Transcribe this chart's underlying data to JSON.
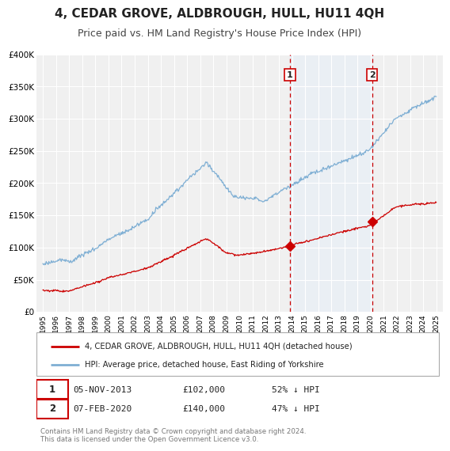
{
  "title": "4, CEDAR GROVE, ALDBROUGH, HULL, HU11 4QH",
  "subtitle": "Price paid vs. HM Land Registry's House Price Index (HPI)",
  "title_fontsize": 11,
  "subtitle_fontsize": 9,
  "background_color": "#ffffff",
  "plot_bg_color": "#f0f0f0",
  "grid_color": "#ffffff",
  "red_line_color": "#cc0000",
  "blue_line_color": "#7fafd4",
  "blue_fill_color": "#ddeeff",
  "sale1_x": 2013.84,
  "sale1_y": 102000,
  "sale2_x": 2020.1,
  "sale2_y": 140000,
  "vline_color": "#cc0000",
  "marker_color": "#cc0000",
  "ylim": [
    0,
    400000
  ],
  "xlim": [
    1994.5,
    2025.5
  ],
  "yticks": [
    0,
    50000,
    100000,
    150000,
    200000,
    250000,
    300000,
    350000,
    400000
  ],
  "ytick_labels": [
    "£0",
    "£50K",
    "£100K",
    "£150K",
    "£200K",
    "£250K",
    "£300K",
    "£350K",
    "£400K"
  ],
  "legend_red_label": "4, CEDAR GROVE, ALDBROUGH, HULL, HU11 4QH (detached house)",
  "legend_blue_label": "HPI: Average price, detached house, East Riding of Yorkshire",
  "table_rows": [
    [
      "1",
      "05-NOV-2013",
      "£102,000",
      "52% ↓ HPI"
    ],
    [
      "2",
      "07-FEB-2020",
      "£140,000",
      "47% ↓ HPI"
    ]
  ],
  "footer": "Contains HM Land Registry data © Crown copyright and database right 2024.\nThis data is licensed under the Open Government Licence v3.0."
}
